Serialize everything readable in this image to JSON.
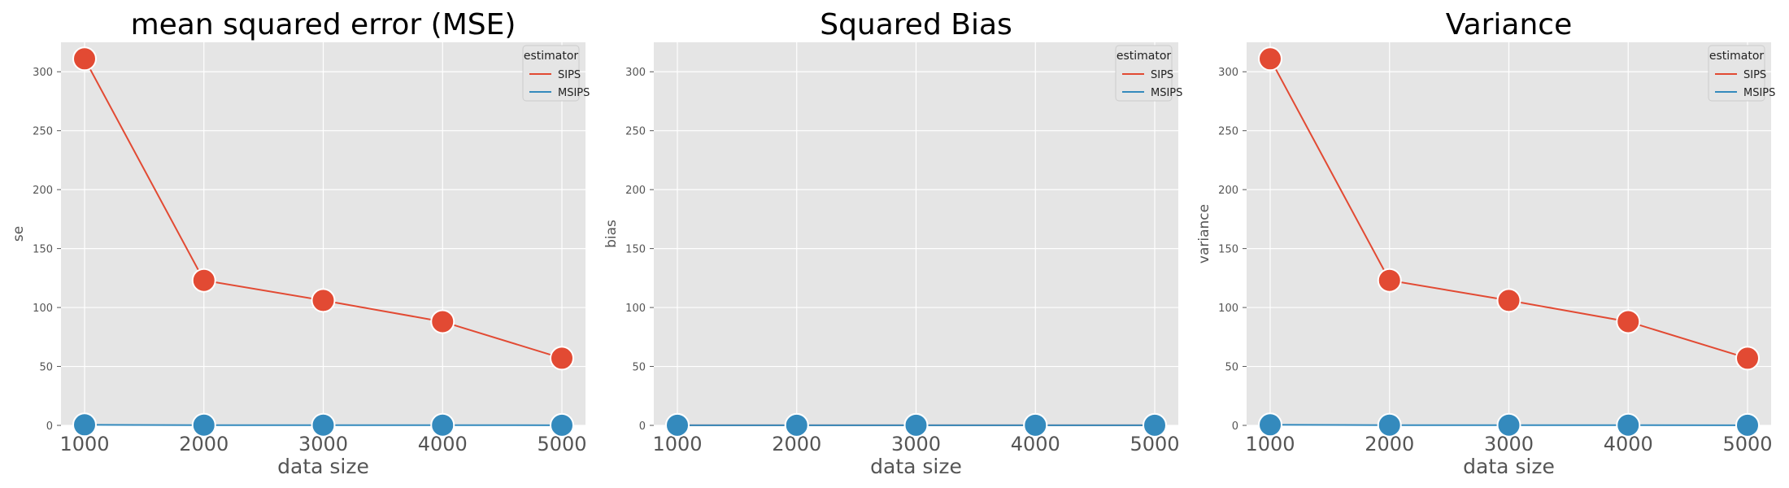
{
  "chart_data": [
    {
      "type": "line",
      "title": "mean squared error (MSE)",
      "xlabel": "data size",
      "ylabel": "se",
      "x": [
        1000,
        2000,
        3000,
        4000,
        5000
      ],
      "xticks": [
        1000,
        2000,
        3000,
        4000,
        5000
      ],
      "yticks": [
        0,
        50,
        100,
        150,
        200,
        250,
        300
      ],
      "ylim": [
        0,
        325
      ],
      "grid": true,
      "legend": {
        "title": "estimator",
        "placement": "top-right"
      },
      "series": [
        {
          "name": "SIPS",
          "color": "#e24a33",
          "values": [
            311,
            123,
            106,
            88,
            57
          ]
        },
        {
          "name": "MSIPS",
          "color": "#348abd",
          "values": [
            0.5,
            0.2,
            0.2,
            0.2,
            0.1
          ]
        }
      ]
    },
    {
      "type": "line",
      "title": "Squared Bias",
      "xlabel": "data size",
      "ylabel": "bias",
      "x": [
        1000,
        2000,
        3000,
        4000,
        5000
      ],
      "xticks": [
        1000,
        2000,
        3000,
        4000,
        5000
      ],
      "yticks": [
        0,
        50,
        100,
        150,
        200,
        250,
        300
      ],
      "ylim": [
        0,
        325
      ],
      "grid": true,
      "legend": {
        "title": "estimator",
        "placement": "top-right"
      },
      "series": [
        {
          "name": "SIPS",
          "color": "#e24a33",
          "values": [
            0.1,
            0.1,
            0.1,
            0.1,
            0.1
          ]
        },
        {
          "name": "MSIPS",
          "color": "#348abd",
          "values": [
            0.1,
            0.1,
            0.1,
            0.1,
            0.1
          ]
        }
      ]
    },
    {
      "type": "line",
      "title": "Variance",
      "xlabel": "data size",
      "ylabel": "variance",
      "x": [
        1000,
        2000,
        3000,
        4000,
        5000
      ],
      "xticks": [
        1000,
        2000,
        3000,
        4000,
        5000
      ],
      "yticks": [
        0,
        50,
        100,
        150,
        200,
        250,
        300
      ],
      "ylim": [
        0,
        325
      ],
      "grid": true,
      "legend": {
        "title": "estimator",
        "placement": "top-right"
      },
      "series": [
        {
          "name": "SIPS",
          "color": "#e24a33",
          "values": [
            311,
            123,
            106,
            88,
            57
          ]
        },
        {
          "name": "MSIPS",
          "color": "#348abd",
          "values": [
            0.5,
            0.2,
            0.2,
            0.2,
            0.1
          ]
        }
      ]
    }
  ]
}
